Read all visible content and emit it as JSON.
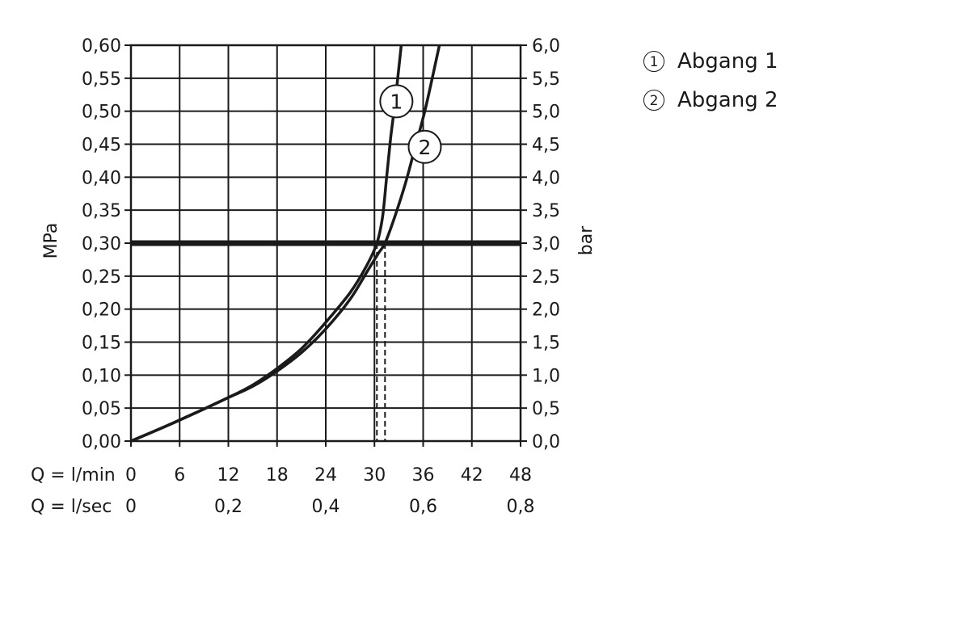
{
  "chart_data": {
    "type": "line",
    "ylabel_left": "MPa",
    "ylabel_right": "bar",
    "x_row_label_1": "Q = l/min",
    "x_row_label_2": "Q = l/sec",
    "xlim": [
      0,
      48
    ],
    "ylim": [
      0,
      0.6
    ],
    "x_ticks": [
      "0",
      "6",
      "12",
      "18",
      "24",
      "30",
      "36",
      "42",
      "48"
    ],
    "x_ticks_sec": [
      {
        "at": 0,
        "label": "0"
      },
      {
        "at": 12,
        "label": "0,2"
      },
      {
        "at": 24,
        "label": "0,4"
      },
      {
        "at": 36,
        "label": "0,6"
      },
      {
        "at": 48,
        "label": "0,8"
      }
    ],
    "y_ticks_left": [
      "0,00",
      "0,05",
      "0,10",
      "0,15",
      "0,20",
      "0,25",
      "0,30",
      "0,35",
      "0,40",
      "0,45",
      "0,50",
      "0,55",
      "0,60"
    ],
    "y_ticks_right": [
      "0,0",
      "0,5",
      "1,0",
      "1,5",
      "2,0",
      "2,5",
      "3,0",
      "3,5",
      "4,0",
      "4,5",
      "5,0",
      "5,5",
      "6,0"
    ],
    "reference_line": {
      "y": 0.3
    },
    "grid": true,
    "series": [
      {
        "marker": "1",
        "label_position": {
          "x": 32.7,
          "y": 0.515
        },
        "dashed_drop_x": 30.3,
        "points": [
          [
            0,
            0
          ],
          [
            4,
            0.021
          ],
          [
            8,
            0.043
          ],
          [
            12,
            0.066
          ],
          [
            15,
            0.085
          ],
          [
            18,
            0.11
          ],
          [
            21,
            0.14
          ],
          [
            24,
            0.18
          ],
          [
            27,
            0.225
          ],
          [
            29,
            0.265
          ],
          [
            30.3,
            0.3
          ],
          [
            31,
            0.34
          ],
          [
            31.5,
            0.4
          ],
          [
            32,
            0.46
          ],
          [
            32.6,
            0.52
          ],
          [
            33.3,
            0.6
          ]
        ]
      },
      {
        "marker": "2",
        "label_position": {
          "x": 36.2,
          "y": 0.446
        },
        "dashed_drop_x": 31.3,
        "points": [
          [
            0,
            0
          ],
          [
            4,
            0.021
          ],
          [
            8,
            0.043
          ],
          [
            12,
            0.066
          ],
          [
            15,
            0.083
          ],
          [
            18,
            0.106
          ],
          [
            21,
            0.134
          ],
          [
            24,
            0.17
          ],
          [
            27,
            0.215
          ],
          [
            29,
            0.255
          ],
          [
            30.5,
            0.285
          ],
          [
            31.3,
            0.3
          ],
          [
            32.5,
            0.34
          ],
          [
            33.8,
            0.39
          ],
          [
            35,
            0.445
          ],
          [
            36.3,
            0.505
          ],
          [
            38,
            0.6
          ]
        ]
      }
    ],
    "legend": [
      {
        "marker": "1",
        "label": "Abgang 1"
      },
      {
        "marker": "2",
        "label": "Abgang 2"
      }
    ],
    "legend_position": "right"
  }
}
